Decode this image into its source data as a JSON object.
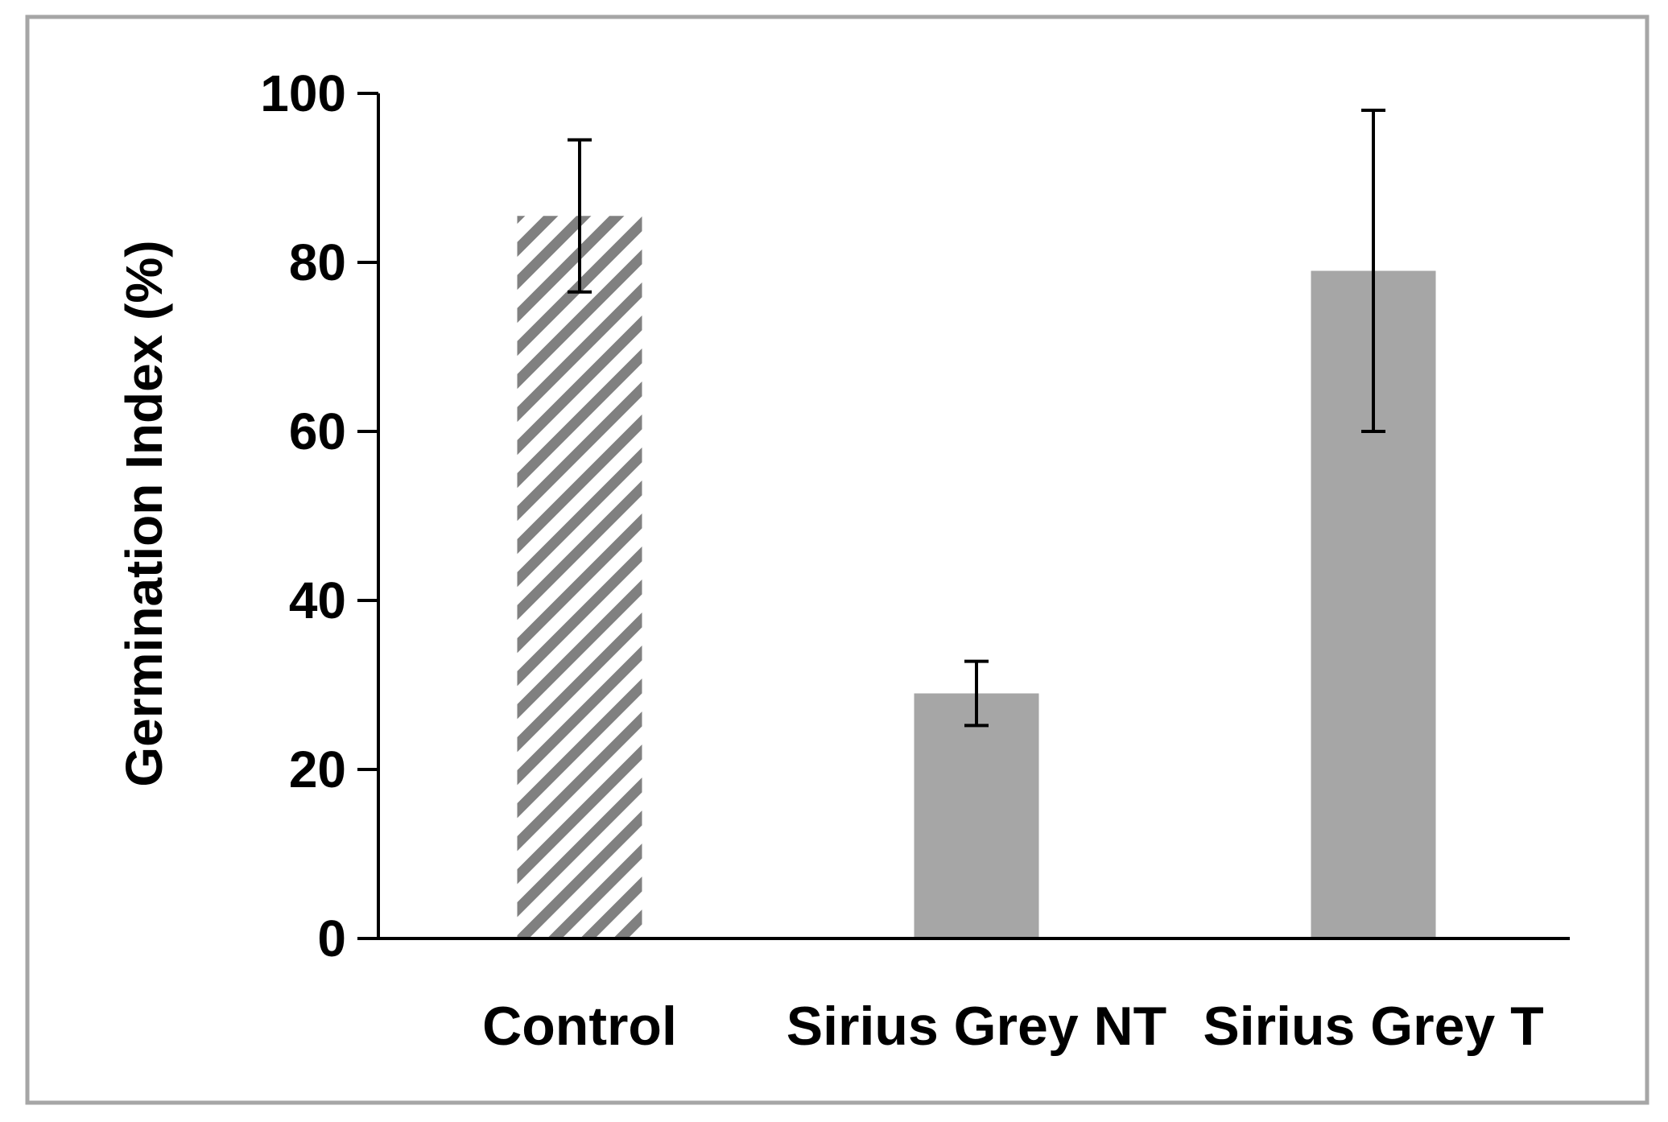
{
  "chart_data": {
    "type": "bar",
    "title": "",
    "xlabel": "",
    "ylabel": "Germination Index (%)",
    "categories": [
      "Control",
      "Sirius Grey NT",
      "Sirius Grey T"
    ],
    "values": [
      85.5,
      29,
      79
    ],
    "error": [
      9,
      3.8,
      19
    ],
    "ylim": [
      0,
      100
    ],
    "yticks": [
      {
        "value": 0,
        "label": "0"
      },
      {
        "value": 20,
        "label": "20"
      },
      {
        "value": 40,
        "label": "40"
      },
      {
        "value": 60,
        "label": "60"
      },
      {
        "value": 80,
        "label": "80"
      },
      {
        "value": 100,
        "label": "100"
      }
    ],
    "bar_fills": [
      "hatched",
      "solid",
      "solid"
    ],
    "colors": {
      "bar": "#a6a6a6",
      "hatch": "#808080",
      "axis": "#000000",
      "error_bar": "#000000",
      "frame": "#a6a6a6"
    },
    "grid": false,
    "legend": "none"
  }
}
